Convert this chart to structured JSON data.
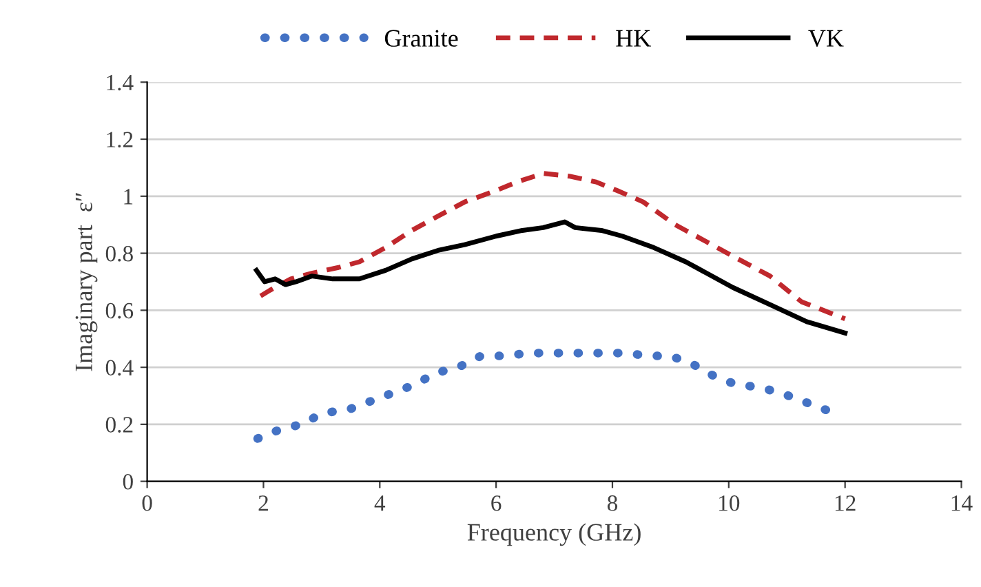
{
  "chart_data": {
    "type": "line",
    "xlabel": "Frequency (GHz)",
    "ylabel": "Imaginary part  ε″",
    "xlim": [
      0,
      14
    ],
    "ylim": [
      0,
      1.4
    ],
    "xticks": [
      0,
      2,
      4,
      6,
      8,
      10,
      12,
      14
    ],
    "yticks": [
      0,
      0.2,
      0.4,
      0.6,
      0.8,
      1,
      1.2,
      1.4
    ],
    "grid": "y",
    "legend": "top",
    "marker": "none",
    "series": [
      {
        "name": "Granite",
        "color": "#4472c4",
        "line_style": "dotted",
        "x": [
          1.9,
          2.26,
          2.65,
          3.03,
          3.44,
          3.83,
          4.22,
          4.61,
          4.96,
          5.35,
          5.74,
          6.15,
          6.56,
          6.97,
          7.38,
          7.81,
          8.23,
          8.62,
          9.0,
          9.39,
          9.74,
          10.12,
          10.52,
          10.9,
          11.29,
          11.68
        ],
        "values": [
          0.15,
          0.18,
          0.2,
          0.24,
          0.25,
          0.28,
          0.31,
          0.34,
          0.38,
          0.4,
          0.44,
          0.44,
          0.45,
          0.45,
          0.45,
          0.45,
          0.45,
          0.44,
          0.44,
          0.41,
          0.37,
          0.34,
          0.33,
          0.31,
          0.28,
          0.25
        ]
      },
      {
        "name": "HK",
        "color": "#c0282d",
        "line_style": "dashed",
        "x": [
          1.95,
          2.11,
          2.47,
          2.83,
          3.29,
          3.65,
          4.1,
          4.55,
          5.0,
          5.46,
          6.0,
          6.36,
          6.81,
          7.27,
          7.72,
          8.08,
          8.53,
          9.08,
          9.62,
          10.16,
          10.71,
          11.25,
          12.0
        ],
        "values": [
          0.65,
          0.67,
          0.71,
          0.73,
          0.75,
          0.77,
          0.82,
          0.88,
          0.93,
          0.98,
          1.02,
          1.05,
          1.08,
          1.07,
          1.05,
          1.02,
          0.98,
          0.9,
          0.84,
          0.78,
          0.72,
          0.63,
          0.57
        ]
      },
      {
        "name": "VK",
        "color": "#000000",
        "line_style": "solid",
        "x": [
          1.88,
          2.02,
          2.2,
          2.38,
          2.56,
          2.83,
          3.19,
          3.65,
          4.1,
          4.55,
          5.0,
          5.46,
          6.0,
          6.45,
          6.81,
          7.18,
          7.36,
          7.81,
          8.17,
          8.71,
          9.26,
          9.62,
          10.07,
          10.71,
          11.34,
          12.0
        ],
        "values": [
          0.74,
          0.7,
          0.71,
          0.69,
          0.7,
          0.72,
          0.71,
          0.71,
          0.74,
          0.78,
          0.81,
          0.83,
          0.86,
          0.88,
          0.89,
          0.91,
          0.89,
          0.88,
          0.86,
          0.82,
          0.77,
          0.73,
          0.68,
          0.62,
          0.56,
          0.52
        ]
      }
    ]
  }
}
